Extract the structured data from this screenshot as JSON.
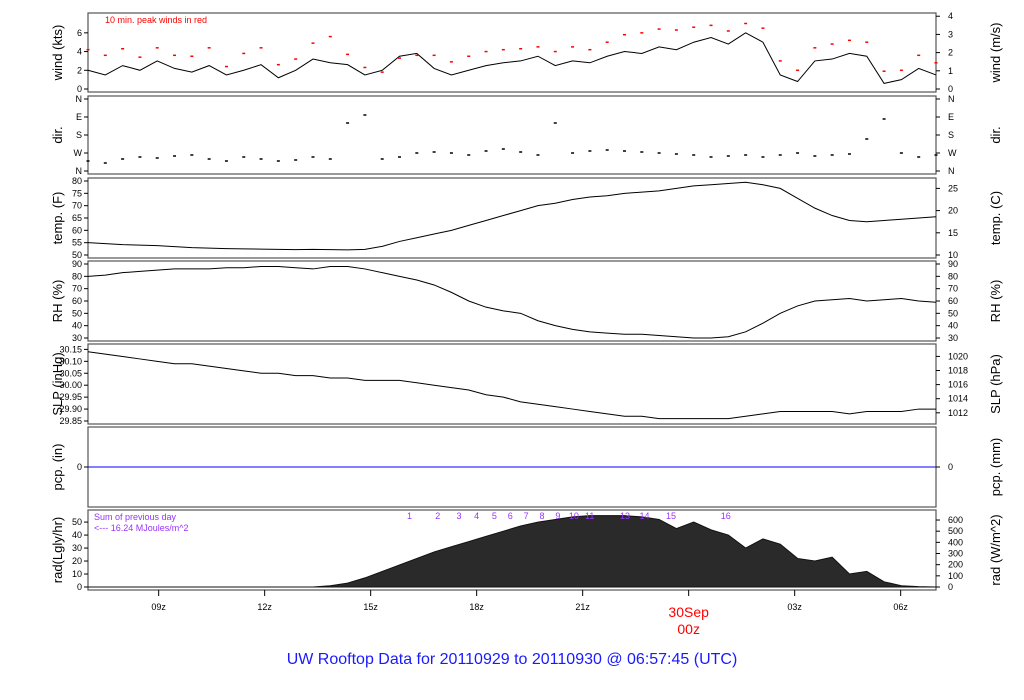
{
  "title": "UW Rooftop Data for 20110929  to  20110930 @ 06:57:45  (UTC)",
  "colors": {
    "gust": "#ff0000",
    "pcp": "#0000ff",
    "annot": "#9933ff",
    "date": "#ff0000"
  },
  "chart_data": {
    "type": "line",
    "x_unit": "hours since 07z 29Sep",
    "xlim": [
      0,
      24
    ],
    "x_ticks": [
      {
        "t": 2,
        "label": "09z"
      },
      {
        "t": 5,
        "label": "12z"
      },
      {
        "t": 8,
        "label": "15z"
      },
      {
        "t": 11,
        "label": "18z"
      },
      {
        "t": 14,
        "label": "21z"
      },
      {
        "t": 17,
        "label": "30Sep",
        "label2": "00z"
      },
      {
        "t": 20,
        "label": "03z"
      },
      {
        "t": 23,
        "label": "06z"
      }
    ],
    "panels": {
      "wind": {
        "ylabel": "wind (kts)",
        "ylabel_right": "wind (m/s)",
        "annotation": "10 min. peak winds in red",
        "ylim": [
          0,
          7.8
        ],
        "ticks": [
          "0",
          "2",
          "4",
          "6"
        ],
        "ticks_right": [
          "0",
          "1",
          "2",
          "3",
          "4"
        ],
        "speed": [
          2,
          1.5,
          2.5,
          2,
          3,
          2.2,
          1.8,
          2.5,
          1.5,
          2,
          2.6,
          1.2,
          2,
          3.2,
          2.8,
          2.6,
          1.5,
          2,
          3.5,
          3.8,
          2.2,
          1.5,
          2,
          2.5,
          2.8,
          3,
          3.5,
          2.5,
          3,
          2.8,
          3.5,
          4,
          3.8,
          4.5,
          4.2,
          5,
          5.5,
          4.8,
          6,
          5,
          1.5,
          0.8,
          3,
          3.2,
          3.8,
          3.5,
          0.6,
          1,
          2.2,
          1.5
        ],
        "gust": [
          4.2,
          3.6,
          4.3,
          3.4,
          4.4,
          3.6,
          3.5,
          4.4,
          2.4,
          3.8,
          4.4,
          2.6,
          3.2,
          4.9,
          5.6,
          3.7,
          2.3,
          1.8,
          3.3,
          3.6,
          3.6,
          2.9,
          3.5,
          4,
          4.2,
          4.3,
          4.5,
          4,
          4.5,
          4.2,
          5,
          5.8,
          6,
          6.4,
          6.3,
          6.6,
          6.8,
          6.2,
          7,
          6.5,
          3,
          2,
          4.4,
          4.8,
          5.2,
          5,
          1.9,
          2,
          3.6,
          2.8
        ]
      },
      "dir": {
        "ylabel": "dir.",
        "ylabel_right": "dir.",
        "ticks": [
          "N",
          "W",
          "S",
          "E",
          "N"
        ],
        "ylim": [
          360,
          0
        ],
        "deg": [
          310,
          320,
          300,
          290,
          295,
          285,
          280,
          300,
          310,
          290,
          300,
          310,
          305,
          290,
          300,
          120,
          80,
          300,
          290,
          270,
          265,
          270,
          280,
          260,
          250,
          265,
          280,
          120,
          270,
          260,
          255,
          260,
          265,
          270,
          275,
          280,
          290,
          285,
          280,
          290,
          280,
          270,
          285,
          280,
          275,
          200,
          100,
          270,
          290,
          280
        ]
      },
      "temp": {
        "ylabel": "temp. (F)",
        "ylabel_right": "temp. (C)",
        "ylim": [
          50,
          80
        ],
        "ticks": [
          "50",
          "55",
          "60",
          "65",
          "70",
          "75",
          "80"
        ],
        "ticks_right": [
          "10",
          "15",
          "20",
          "25"
        ],
        "values": [
          55,
          54.6,
          54.2,
          54,
          53.8,
          53.4,
          53,
          52.8,
          52.6,
          52.5,
          52.4,
          52.3,
          52.2,
          52.3,
          52.2,
          52.1,
          52.3,
          53.5,
          55.5,
          57,
          58.5,
          60,
          62,
          64,
          66,
          68,
          70,
          71,
          72.5,
          73.5,
          74,
          75,
          75.5,
          76,
          77,
          78,
          78.5,
          79,
          79.5,
          78.5,
          77,
          73,
          69,
          66,
          64,
          63.5,
          64,
          64.5,
          65,
          65.5
        ]
      },
      "rh": {
        "ylabel": "RH (%)",
        "ylabel_right": "RH (%)",
        "ylim": [
          30,
          90
        ],
        "ticks": [
          "30",
          "40",
          "50",
          "60",
          "70",
          "80",
          "90"
        ],
        "values": [
          80,
          81,
          83,
          84,
          85,
          86,
          86,
          86,
          87,
          87,
          88,
          88,
          87,
          86,
          88,
          88,
          86,
          83,
          80,
          77,
          73,
          67,
          60,
          55,
          52,
          50,
          44,
          40,
          37,
          35,
          34,
          33,
          33,
          32,
          31,
          30,
          30,
          31,
          35,
          42,
          50,
          56,
          60,
          61,
          62,
          60,
          61,
          62,
          60,
          59
        ]
      },
      "slp": {
        "ylabel": "SLP (inHg)",
        "ylabel_right": "SLP (hPa)",
        "ylim": [
          29.85,
          30.16
        ],
        "ticks": [
          "29.85",
          "29.90",
          "29.95",
          "30.00",
          "30.05",
          "30.10",
          "30.15"
        ],
        "ticks_right": [
          "1012",
          "1014",
          "1016",
          "1018",
          "1020"
        ],
        "values": [
          30.14,
          30.13,
          30.12,
          30.11,
          30.1,
          30.09,
          30.09,
          30.08,
          30.07,
          30.06,
          30.05,
          30.05,
          30.04,
          30.04,
          30.03,
          30.03,
          30.02,
          30.02,
          30.02,
          30.01,
          30.0,
          29.99,
          29.98,
          29.96,
          29.95,
          29.93,
          29.92,
          29.91,
          29.9,
          29.89,
          29.88,
          29.87,
          29.87,
          29.86,
          29.86,
          29.86,
          29.86,
          29.86,
          29.87,
          29.88,
          29.89,
          29.89,
          29.89,
          29.89,
          29.88,
          29.89,
          29.89,
          29.89,
          29.9,
          29.9
        ]
      },
      "pcp": {
        "ylabel": "pcp. (in)",
        "ylabel_right": "pcp. (mm)",
        "ylim": [
          -1,
          1
        ],
        "ticks": [
          "0"
        ],
        "ticks_right": [
          "0"
        ],
        "values": [
          0,
          0
        ]
      },
      "rad": {
        "ylabel": "rad(Lgly/hr)",
        "ylabel_right": "rad (W/m^2)",
        "ylim": [
          0,
          57
        ],
        "ticks": [
          "0",
          "10",
          "20",
          "30",
          "40",
          "50"
        ],
        "ticks_right": [
          "0",
          "100",
          "200",
          "300",
          "400",
          "500",
          "600"
        ],
        "annotation1": "Sum of previous day",
        "annotation2": "<--- 16.24 MJoules/m^2",
        "values": [
          0,
          0,
          0,
          0,
          0,
          0,
          0,
          0,
          0,
          0,
          0,
          0,
          0,
          0,
          1,
          3,
          7,
          12,
          17,
          22,
          27,
          31,
          35,
          39,
          43,
          47,
          50,
          52,
          54,
          55,
          55,
          55,
          54,
          52,
          45,
          50,
          44,
          40,
          30,
          37,
          33,
          22,
          20,
          23,
          10,
          12,
          4,
          1,
          0.3,
          0
        ],
        "hour_markers": [
          {
            "label": "1",
            "t": 9.1
          },
          {
            "label": "2",
            "t": 9.9
          },
          {
            "label": "3",
            "t": 10.5
          },
          {
            "label": "4",
            "t": 11.0
          },
          {
            "label": "5",
            "t": 11.5
          },
          {
            "label": "6",
            "t": 11.95
          },
          {
            "label": "7",
            "t": 12.4
          },
          {
            "label": "8",
            "t": 12.85
          },
          {
            "label": "9",
            "t": 13.3
          },
          {
            "label": "10",
            "t": 13.75
          },
          {
            "label": "11",
            "t": 14.2
          },
          {
            "label": "13",
            "t": 15.2
          },
          {
            "label": "14",
            "t": 15.75
          },
          {
            "label": "15",
            "t": 16.5
          },
          {
            "label": "16",
            "t": 18.05
          }
        ]
      }
    }
  }
}
